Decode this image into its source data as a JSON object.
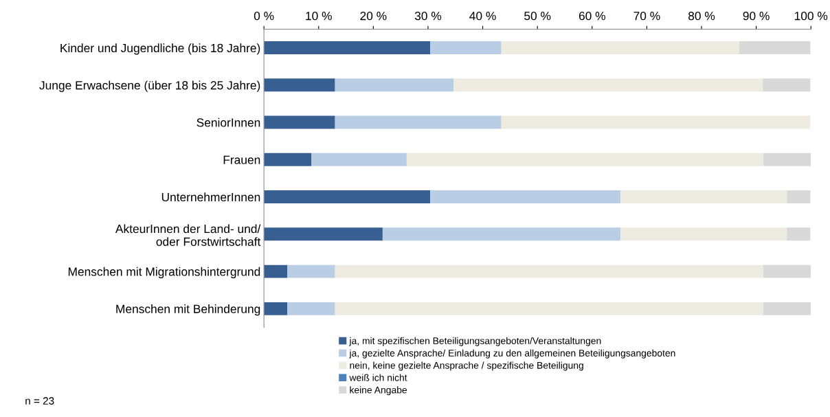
{
  "chart_data": {
    "type": "bar",
    "orientation": "horizontal",
    "stacked": true,
    "categories": [
      "Kinder und Jugendliche (bis 18 Jahre)",
      "Junge Erwachsene (über 18 bis 25 Jahre)",
      "SeniorInnen",
      "Frauen",
      "UnternehmerInnen",
      "AkteurInnen der Land- und/\noder Forstwirtschaft",
      "Menschen mit Migrationshintergrund",
      "Menschen mit Behinderung"
    ],
    "series": [
      {
        "name": "ja, mit spezifischen Beteiligungsangeboten/Veranstaltungen",
        "color": "#375f91",
        "values": [
          30.4,
          13.0,
          13.0,
          8.7,
          30.4,
          21.7,
          4.3,
          4.3
        ]
      },
      {
        "name": "ja, gezielte Ansprache/ Einladung zu den allgemeinen Beteiligungsangeboten",
        "color": "#b9cde5",
        "values": [
          13.0,
          21.7,
          30.4,
          17.4,
          34.8,
          43.5,
          8.7,
          8.7
        ]
      },
      {
        "name": "nein, keine gezielte Ansprache / spezifische Beteiligung",
        "color": "#eeece1",
        "values": [
          43.5,
          56.5,
          56.5,
          65.2,
          30.4,
          30.4,
          78.3,
          78.3
        ]
      },
      {
        "name": "weiß ich nicht",
        "color": "#4f81bd",
        "values": [
          0,
          0,
          0,
          0,
          0,
          0,
          0,
          0
        ]
      },
      {
        "name": "keine Angabe",
        "color": "#d9d9d9",
        "values": [
          13.0,
          8.7,
          0,
          8.7,
          4.3,
          4.3,
          8.7,
          8.7
        ]
      }
    ],
    "xlim": [
      0,
      100
    ],
    "xticks": [
      {
        "value": 0,
        "label": "0 %"
      },
      {
        "value": 10,
        "label": "10 %"
      },
      {
        "value": 20,
        "label": "20 %"
      },
      {
        "value": 30,
        "label": "30 %"
      },
      {
        "value": 40,
        "label": "40 %"
      },
      {
        "value": 50,
        "label": "50 %"
      },
      {
        "value": 60,
        "label": "60 %"
      },
      {
        "value": 70,
        "label": "70 %"
      },
      {
        "value": 80,
        "label": "80 %"
      },
      {
        "value": 90,
        "label": "90 %"
      },
      {
        "value": 100,
        "label": "100 %"
      }
    ],
    "grid": false,
    "legend": "bottom",
    "annotations": [
      "n = 23"
    ]
  }
}
